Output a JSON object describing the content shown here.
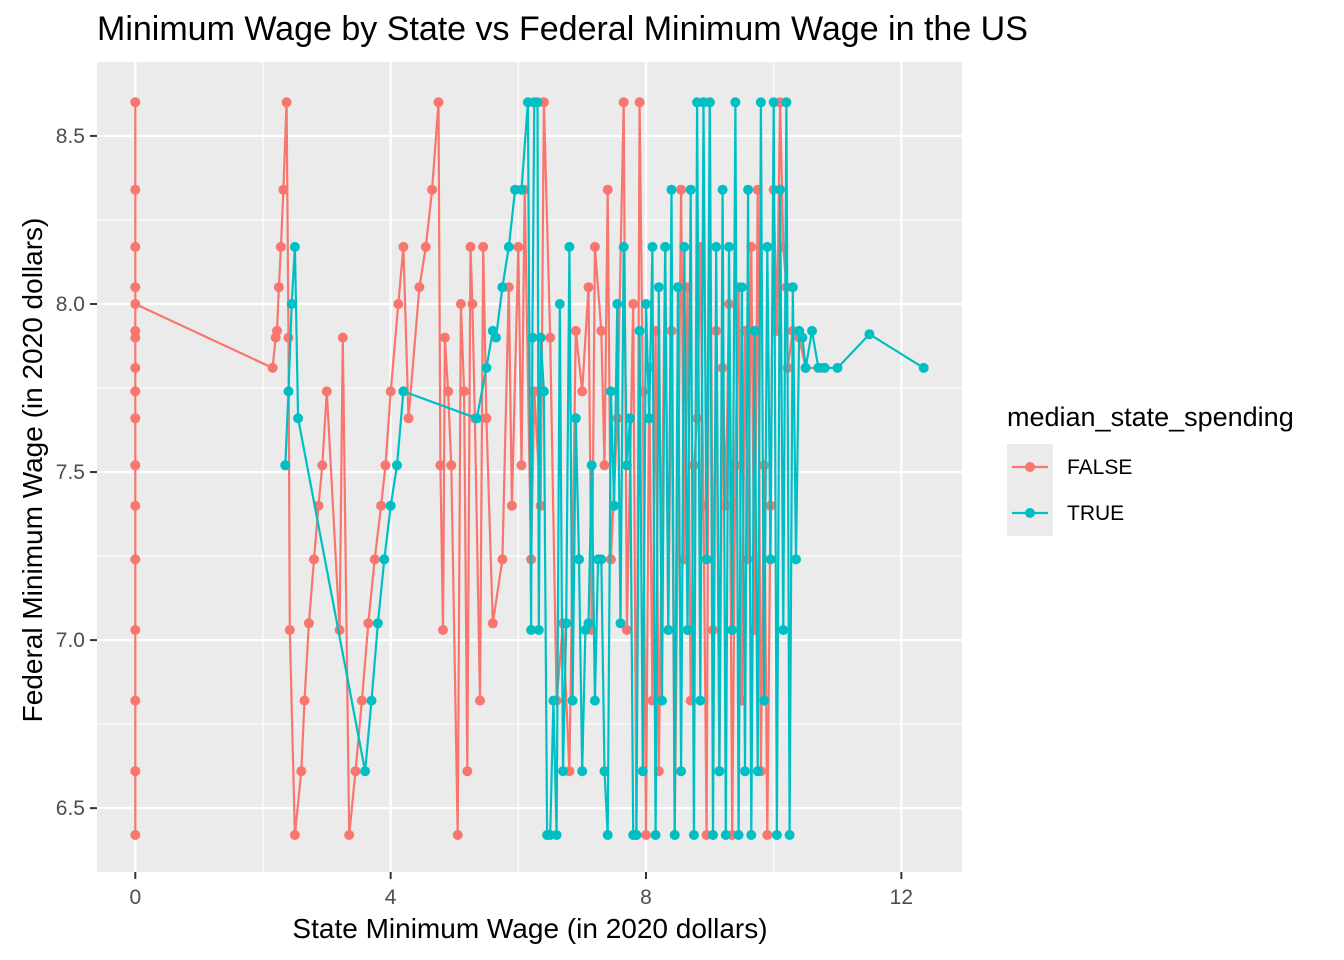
{
  "chart_data": {
    "type": "line",
    "title": "Minimum Wage by State vs Federal Minimum Wage in the US",
    "xlabel": "State Minimum Wage (in 2020 dollars)",
    "ylabel": "Federal Minimum Wage (in 2020 dollars)",
    "xlim": [
      -0.6,
      12.95
    ],
    "ylim": [
      6.31,
      8.72
    ],
    "x_ticks": [
      0,
      4,
      8,
      12
    ],
    "x_tick_labels": [
      "0",
      "4",
      "8",
      "12"
    ],
    "y_ticks": [
      6.5,
      7.0,
      7.5,
      8.0,
      8.5
    ],
    "y_tick_labels": [
      "6.5",
      "7.0",
      "7.5",
      "8.0",
      "8.5"
    ],
    "grid": true,
    "legend": {
      "title": "median_state_spending",
      "position": "right",
      "entries": [
        "FALSE",
        "TRUE"
      ]
    },
    "series": [
      {
        "name": "FALSE",
        "color": "#F8766D",
        "points": [
          [
            0,
            8.6
          ],
          [
            0,
            6.42
          ],
          [
            0,
            8.34
          ],
          [
            0,
            6.61
          ],
          [
            0,
            8.17
          ],
          [
            0,
            6.82
          ],
          [
            0,
            8.05
          ],
          [
            0,
            7.03
          ],
          [
            0,
            7.92
          ],
          [
            0,
            7.24
          ],
          [
            0,
            7.9
          ],
          [
            0,
            7.4
          ],
          [
            0,
            7.81
          ],
          [
            0,
            7.52
          ],
          [
            0,
            7.74
          ],
          [
            0,
            7.66
          ],
          [
            0,
            8.0
          ],
          [
            2.15,
            7.81
          ],
          [
            2.2,
            7.9
          ],
          [
            2.22,
            7.92
          ],
          [
            2.25,
            8.05
          ],
          [
            2.28,
            8.17
          ],
          [
            2.32,
            8.34
          ],
          [
            2.37,
            8.6
          ],
          [
            2.4,
            7.9
          ],
          [
            2.42,
            7.03
          ],
          [
            2.5,
            6.42
          ],
          [
            2.6,
            6.61
          ],
          [
            2.65,
            6.82
          ],
          [
            2.72,
            7.05
          ],
          [
            2.8,
            7.24
          ],
          [
            2.87,
            7.4
          ],
          [
            2.93,
            7.52
          ],
          [
            3.0,
            7.74
          ],
          [
            3.2,
            7.03
          ],
          [
            3.25,
            7.9
          ],
          [
            3.35,
            6.42
          ],
          [
            3.45,
            6.61
          ],
          [
            3.55,
            6.82
          ],
          [
            3.65,
            7.05
          ],
          [
            3.75,
            7.24
          ],
          [
            3.85,
            7.4
          ],
          [
            3.92,
            7.52
          ],
          [
            4.0,
            7.74
          ],
          [
            4.12,
            8.0
          ],
          [
            4.2,
            8.17
          ],
          [
            4.28,
            7.66
          ],
          [
            4.45,
            8.05
          ],
          [
            4.55,
            8.17
          ],
          [
            4.65,
            8.34
          ],
          [
            4.75,
            8.6
          ],
          [
            4.78,
            7.52
          ],
          [
            4.82,
            7.03
          ],
          [
            4.85,
            7.9
          ],
          [
            4.9,
            7.74
          ],
          [
            4.95,
            7.52
          ],
          [
            5.05,
            6.42
          ],
          [
            5.1,
            8.0
          ],
          [
            5.15,
            7.74
          ],
          [
            5.2,
            6.61
          ],
          [
            5.25,
            8.17
          ],
          [
            5.28,
            8.0
          ],
          [
            5.32,
            7.66
          ],
          [
            5.4,
            6.82
          ],
          [
            5.45,
            8.17
          ],
          [
            5.5,
            7.66
          ],
          [
            5.6,
            7.05
          ],
          [
            5.75,
            7.24
          ],
          [
            5.85,
            8.05
          ],
          [
            5.9,
            7.4
          ],
          [
            6.0,
            8.17
          ],
          [
            6.05,
            7.52
          ],
          [
            6.1,
            8.34
          ],
          [
            6.2,
            7.24
          ],
          [
            6.25,
            7.74
          ],
          [
            6.35,
            7.4
          ],
          [
            6.4,
            8.6
          ],
          [
            6.5,
            7.9
          ],
          [
            6.6,
            6.82
          ],
          [
            6.7,
            7.05
          ],
          [
            6.8,
            6.61
          ],
          [
            6.9,
            7.92
          ],
          [
            7.0,
            7.74
          ],
          [
            7.1,
            8.05
          ],
          [
            7.15,
            7.03
          ],
          [
            7.2,
            8.17
          ],
          [
            7.3,
            7.92
          ],
          [
            7.35,
            7.52
          ],
          [
            7.4,
            8.34
          ],
          [
            7.45,
            7.24
          ],
          [
            7.55,
            7.66
          ],
          [
            7.65,
            8.6
          ],
          [
            7.7,
            7.03
          ],
          [
            7.8,
            8.0
          ],
          [
            7.85,
            6.42
          ],
          [
            7.9,
            8.6
          ],
          [
            7.95,
            7.74
          ],
          [
            8.0,
            6.42
          ],
          [
            8.05,
            7.81
          ],
          [
            8.1,
            6.82
          ],
          [
            8.15,
            7.92
          ],
          [
            8.2,
            6.61
          ],
          [
            8.3,
            8.17
          ],
          [
            8.35,
            7.03
          ],
          [
            8.4,
            7.92
          ],
          [
            8.45,
            6.42
          ],
          [
            8.55,
            8.34
          ],
          [
            8.6,
            7.24
          ],
          [
            8.65,
            8.05
          ],
          [
            8.7,
            6.82
          ],
          [
            8.75,
            7.52
          ],
          [
            8.8,
            7.66
          ],
          [
            8.85,
            8.17
          ],
          [
            8.9,
            7.4
          ],
          [
            8.95,
            6.42
          ],
          [
            9.0,
            8.6
          ],
          [
            9.05,
            7.03
          ],
          [
            9.1,
            7.92
          ],
          [
            9.15,
            6.61
          ],
          [
            9.2,
            7.81
          ],
          [
            9.25,
            7.4
          ],
          [
            9.3,
            8.0
          ],
          [
            9.35,
            6.42
          ],
          [
            9.4,
            7.52
          ],
          [
            9.45,
            8.05
          ],
          [
            9.5,
            6.82
          ],
          [
            9.55,
            7.92
          ],
          [
            9.6,
            7.24
          ],
          [
            9.65,
            8.17
          ],
          [
            9.7,
            7.03
          ],
          [
            9.75,
            8.34
          ],
          [
            9.8,
            6.61
          ],
          [
            9.85,
            7.52
          ],
          [
            9.9,
            6.42
          ],
          [
            9.95,
            7.4
          ],
          [
            10.0,
            8.34
          ],
          [
            10.05,
            7.92
          ],
          [
            10.1,
            8.6
          ],
          [
            10.15,
            8.17
          ],
          [
            10.2,
            8.05
          ],
          [
            10.22,
            7.81
          ],
          [
            10.3,
            7.92
          ],
          [
            10.4,
            7.9
          ],
          [
            10.5,
            7.81
          ],
          [
            10.75,
            7.81
          ]
        ]
      },
      {
        "name": "TRUE",
        "color": "#00BFC4",
        "points": [
          [
            2.35,
            7.52
          ],
          [
            2.4,
            7.74
          ],
          [
            2.45,
            8.0
          ],
          [
            2.5,
            8.17
          ],
          [
            2.55,
            7.66
          ],
          [
            3.6,
            6.61
          ],
          [
            3.7,
            6.82
          ],
          [
            3.8,
            7.05
          ],
          [
            3.9,
            7.24
          ],
          [
            4.0,
            7.4
          ],
          [
            4.1,
            7.52
          ],
          [
            4.2,
            7.74
          ],
          [
            5.35,
            7.66
          ],
          [
            5.5,
            7.81
          ],
          [
            5.6,
            7.92
          ],
          [
            5.65,
            7.9
          ],
          [
            5.75,
            8.05
          ],
          [
            5.85,
            8.17
          ],
          [
            5.95,
            8.34
          ],
          [
            6.05,
            8.34
          ],
          [
            6.15,
            8.6
          ],
          [
            6.2,
            7.03
          ],
          [
            6.22,
            7.9
          ],
          [
            6.25,
            8.6
          ],
          [
            6.3,
            8.6
          ],
          [
            6.32,
            7.03
          ],
          [
            6.35,
            7.9
          ],
          [
            6.4,
            7.74
          ],
          [
            6.45,
            6.42
          ],
          [
            6.5,
            6.42
          ],
          [
            6.55,
            6.82
          ],
          [
            6.6,
            6.42
          ],
          [
            6.65,
            8.0
          ],
          [
            6.7,
            6.61
          ],
          [
            6.75,
            7.05
          ],
          [
            6.8,
            8.17
          ],
          [
            6.85,
            6.82
          ],
          [
            6.9,
            7.66
          ],
          [
            6.95,
            7.24
          ],
          [
            7.0,
            6.61
          ],
          [
            7.05,
            7.03
          ],
          [
            7.1,
            7.05
          ],
          [
            7.15,
            7.52
          ],
          [
            7.2,
            6.82
          ],
          [
            7.25,
            7.24
          ],
          [
            7.3,
            7.24
          ],
          [
            7.35,
            6.61
          ],
          [
            7.4,
            6.42
          ],
          [
            7.45,
            7.74
          ],
          [
            7.5,
            7.4
          ],
          [
            7.55,
            8.0
          ],
          [
            7.6,
            7.05
          ],
          [
            7.65,
            8.17
          ],
          [
            7.7,
            7.52
          ],
          [
            7.75,
            7.66
          ],
          [
            7.8,
            6.42
          ],
          [
            7.85,
            6.42
          ],
          [
            7.9,
            7.92
          ],
          [
            7.95,
            6.61
          ],
          [
            8.0,
            8.0
          ],
          [
            8.05,
            7.66
          ],
          [
            8.1,
            8.17
          ],
          [
            8.15,
            6.42
          ],
          [
            8.2,
            8.05
          ],
          [
            8.25,
            6.82
          ],
          [
            8.3,
            8.17
          ],
          [
            8.35,
            7.03
          ],
          [
            8.4,
            8.34
          ],
          [
            8.45,
            6.42
          ],
          [
            8.5,
            8.05
          ],
          [
            8.55,
            6.61
          ],
          [
            8.6,
            8.17
          ],
          [
            8.65,
            7.03
          ],
          [
            8.7,
            8.34
          ],
          [
            8.75,
            6.42
          ],
          [
            8.8,
            8.6
          ],
          [
            8.85,
            6.82
          ],
          [
            8.9,
            8.6
          ],
          [
            8.95,
            7.24
          ],
          [
            9.0,
            8.6
          ],
          [
            9.05,
            6.42
          ],
          [
            9.1,
            8.17
          ],
          [
            9.15,
            6.61
          ],
          [
            9.2,
            8.34
          ],
          [
            9.25,
            6.42
          ],
          [
            9.3,
            8.17
          ],
          [
            9.35,
            7.03
          ],
          [
            9.4,
            8.6
          ],
          [
            9.45,
            6.42
          ],
          [
            9.5,
            8.05
          ],
          [
            9.55,
            6.61
          ],
          [
            9.6,
            8.34
          ],
          [
            9.65,
            6.42
          ],
          [
            9.7,
            7.92
          ],
          [
            9.75,
            6.61
          ],
          [
            9.8,
            8.6
          ],
          [
            9.85,
            6.82
          ],
          [
            9.9,
            8.17
          ],
          [
            9.95,
            7.24
          ],
          [
            10.0,
            8.6
          ],
          [
            10.05,
            6.42
          ],
          [
            10.1,
            8.34
          ],
          [
            10.15,
            7.03
          ],
          [
            10.2,
            8.6
          ],
          [
            10.25,
            6.42
          ],
          [
            10.3,
            8.05
          ],
          [
            10.35,
            7.24
          ],
          [
            10.4,
            7.92
          ],
          [
            10.45,
            7.9
          ],
          [
            10.5,
            7.81
          ],
          [
            10.6,
            7.92
          ],
          [
            10.7,
            7.81
          ],
          [
            10.8,
            7.81
          ],
          [
            11.0,
            7.81
          ],
          [
            11.5,
            7.91
          ],
          [
            12.35,
            7.81
          ]
        ]
      }
    ]
  }
}
